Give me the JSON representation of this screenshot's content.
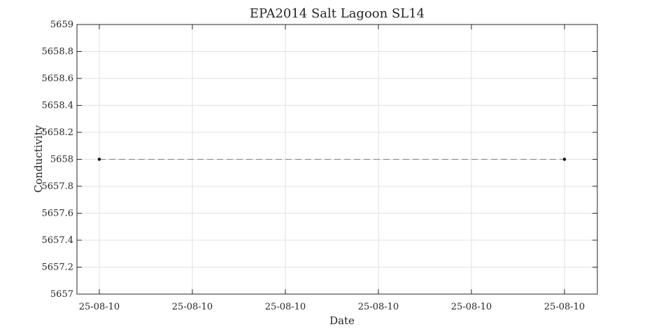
{
  "chart_data": {
    "type": "line",
    "title": "EPA2014 Salt Lagoon SL14",
    "xlabel": "Date",
    "ylabel": "Conductivity",
    "x_tick_labels": [
      "25-08-10",
      "25-08-10",
      "25-08-10",
      "25-08-10",
      "25-08-10",
      "25-08-10"
    ],
    "y_tick_labels": [
      "5657",
      "5657.2",
      "5657.4",
      "5657.6",
      "5657.8",
      "5658",
      "5658.2",
      "5658.4",
      "5658.6",
      "5658.8",
      "5659"
    ],
    "ylim": [
      5657,
      5659
    ],
    "grid": true,
    "line_style": "dashed",
    "marker": "dot",
    "series": [
      {
        "x": [
          "25-08-10",
          "25-08-10"
        ],
        "values": [
          5658,
          5658
        ]
      }
    ],
    "colors": {
      "line": "#808080",
      "marker": "#000000",
      "grid": "#e0e0e0",
      "axes": "#262626"
    }
  }
}
